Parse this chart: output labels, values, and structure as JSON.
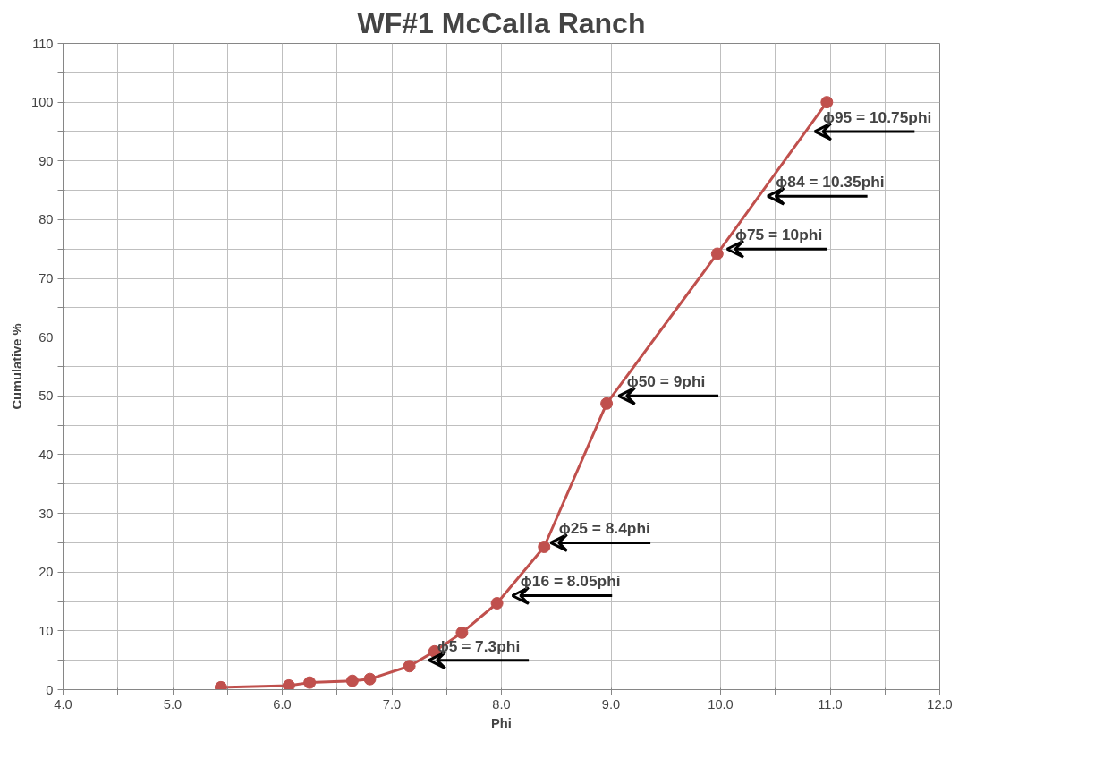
{
  "chart_data": {
    "type": "line",
    "title": "WF#1 McCalla Ranch",
    "xlabel": "Phi",
    "ylabel": "Cumulative %",
    "x": [
      5.44,
      6.06,
      6.25,
      6.64,
      6.8,
      7.16,
      7.39,
      7.64,
      7.96,
      8.39,
      8.96,
      9.97,
      10.97
    ],
    "series": [
      {
        "color": "#c0504d",
        "values": [
          0.4,
          0.7,
          1.2,
          1.5,
          1.8,
          4.0,
          6.5,
          9.7,
          14.7,
          24.3,
          48.7,
          74.2,
          100
        ]
      }
    ],
    "marker": "circle",
    "line_style": "solid",
    "grid": true,
    "xlim": [
      4,
      12
    ],
    "ylim": [
      0,
      110
    ],
    "xticks": [
      {
        "value": 4,
        "label": "4.0"
      },
      {
        "value": 4.5,
        "label": null
      },
      {
        "value": 5,
        "label": "5.0"
      },
      {
        "value": 5.5,
        "label": null
      },
      {
        "value": 6,
        "label": "6.0"
      },
      {
        "value": 6.5,
        "label": null
      },
      {
        "value": 7,
        "label": "7.0"
      },
      {
        "value": 7.5,
        "label": null
      },
      {
        "value": 8,
        "label": "8.0"
      },
      {
        "value": 8.5,
        "label": null
      },
      {
        "value": 9,
        "label": "9.0"
      },
      {
        "value": 9.5,
        "label": null
      },
      {
        "value": 10,
        "label": "10.0"
      },
      {
        "value": 10.5,
        "label": null
      },
      {
        "value": 11,
        "label": "11.0"
      },
      {
        "value": 11.5,
        "label": null
      },
      {
        "value": 12,
        "label": "12.0"
      }
    ],
    "yticks": [
      0,
      {
        "value": 5,
        "label": null
      },
      10,
      {
        "value": 15,
        "label": null
      },
      20,
      {
        "value": 25,
        "label": null
      },
      30,
      {
        "value": 35,
        "label": null
      },
      40,
      {
        "value": 45,
        "label": null
      },
      50,
      {
        "value": 55,
        "label": null
      },
      60,
      {
        "value": 65,
        "label": null
      },
      70,
      {
        "value": 75,
        "label": null
      },
      80,
      {
        "value": 85,
        "label": null
      },
      90,
      {
        "value": 95,
        "label": null
      },
      100,
      {
        "value": 105,
        "label": null
      },
      110
    ],
    "annotations": [
      {
        "text": "ϕ95 = 10.75phi",
        "x": 10.82,
        "y": 95
      },
      {
        "text": "ϕ84 = 10.35phi",
        "x": 10.39,
        "y": 84
      },
      {
        "text": "ϕ75 = 10phi",
        "x": 10.02,
        "y": 75
      },
      {
        "text": "ϕ50 = 9phi",
        "x": 9.03,
        "y": 50
      },
      {
        "text": "ϕ25 = 8.4phi",
        "x": 8.41,
        "y": 25
      },
      {
        "text": "ϕ16 = 8.05phi",
        "x": 8.06,
        "y": 16
      },
      {
        "text": "ϕ5 = 7.3phi",
        "x": 7.3,
        "y": 5
      }
    ]
  }
}
